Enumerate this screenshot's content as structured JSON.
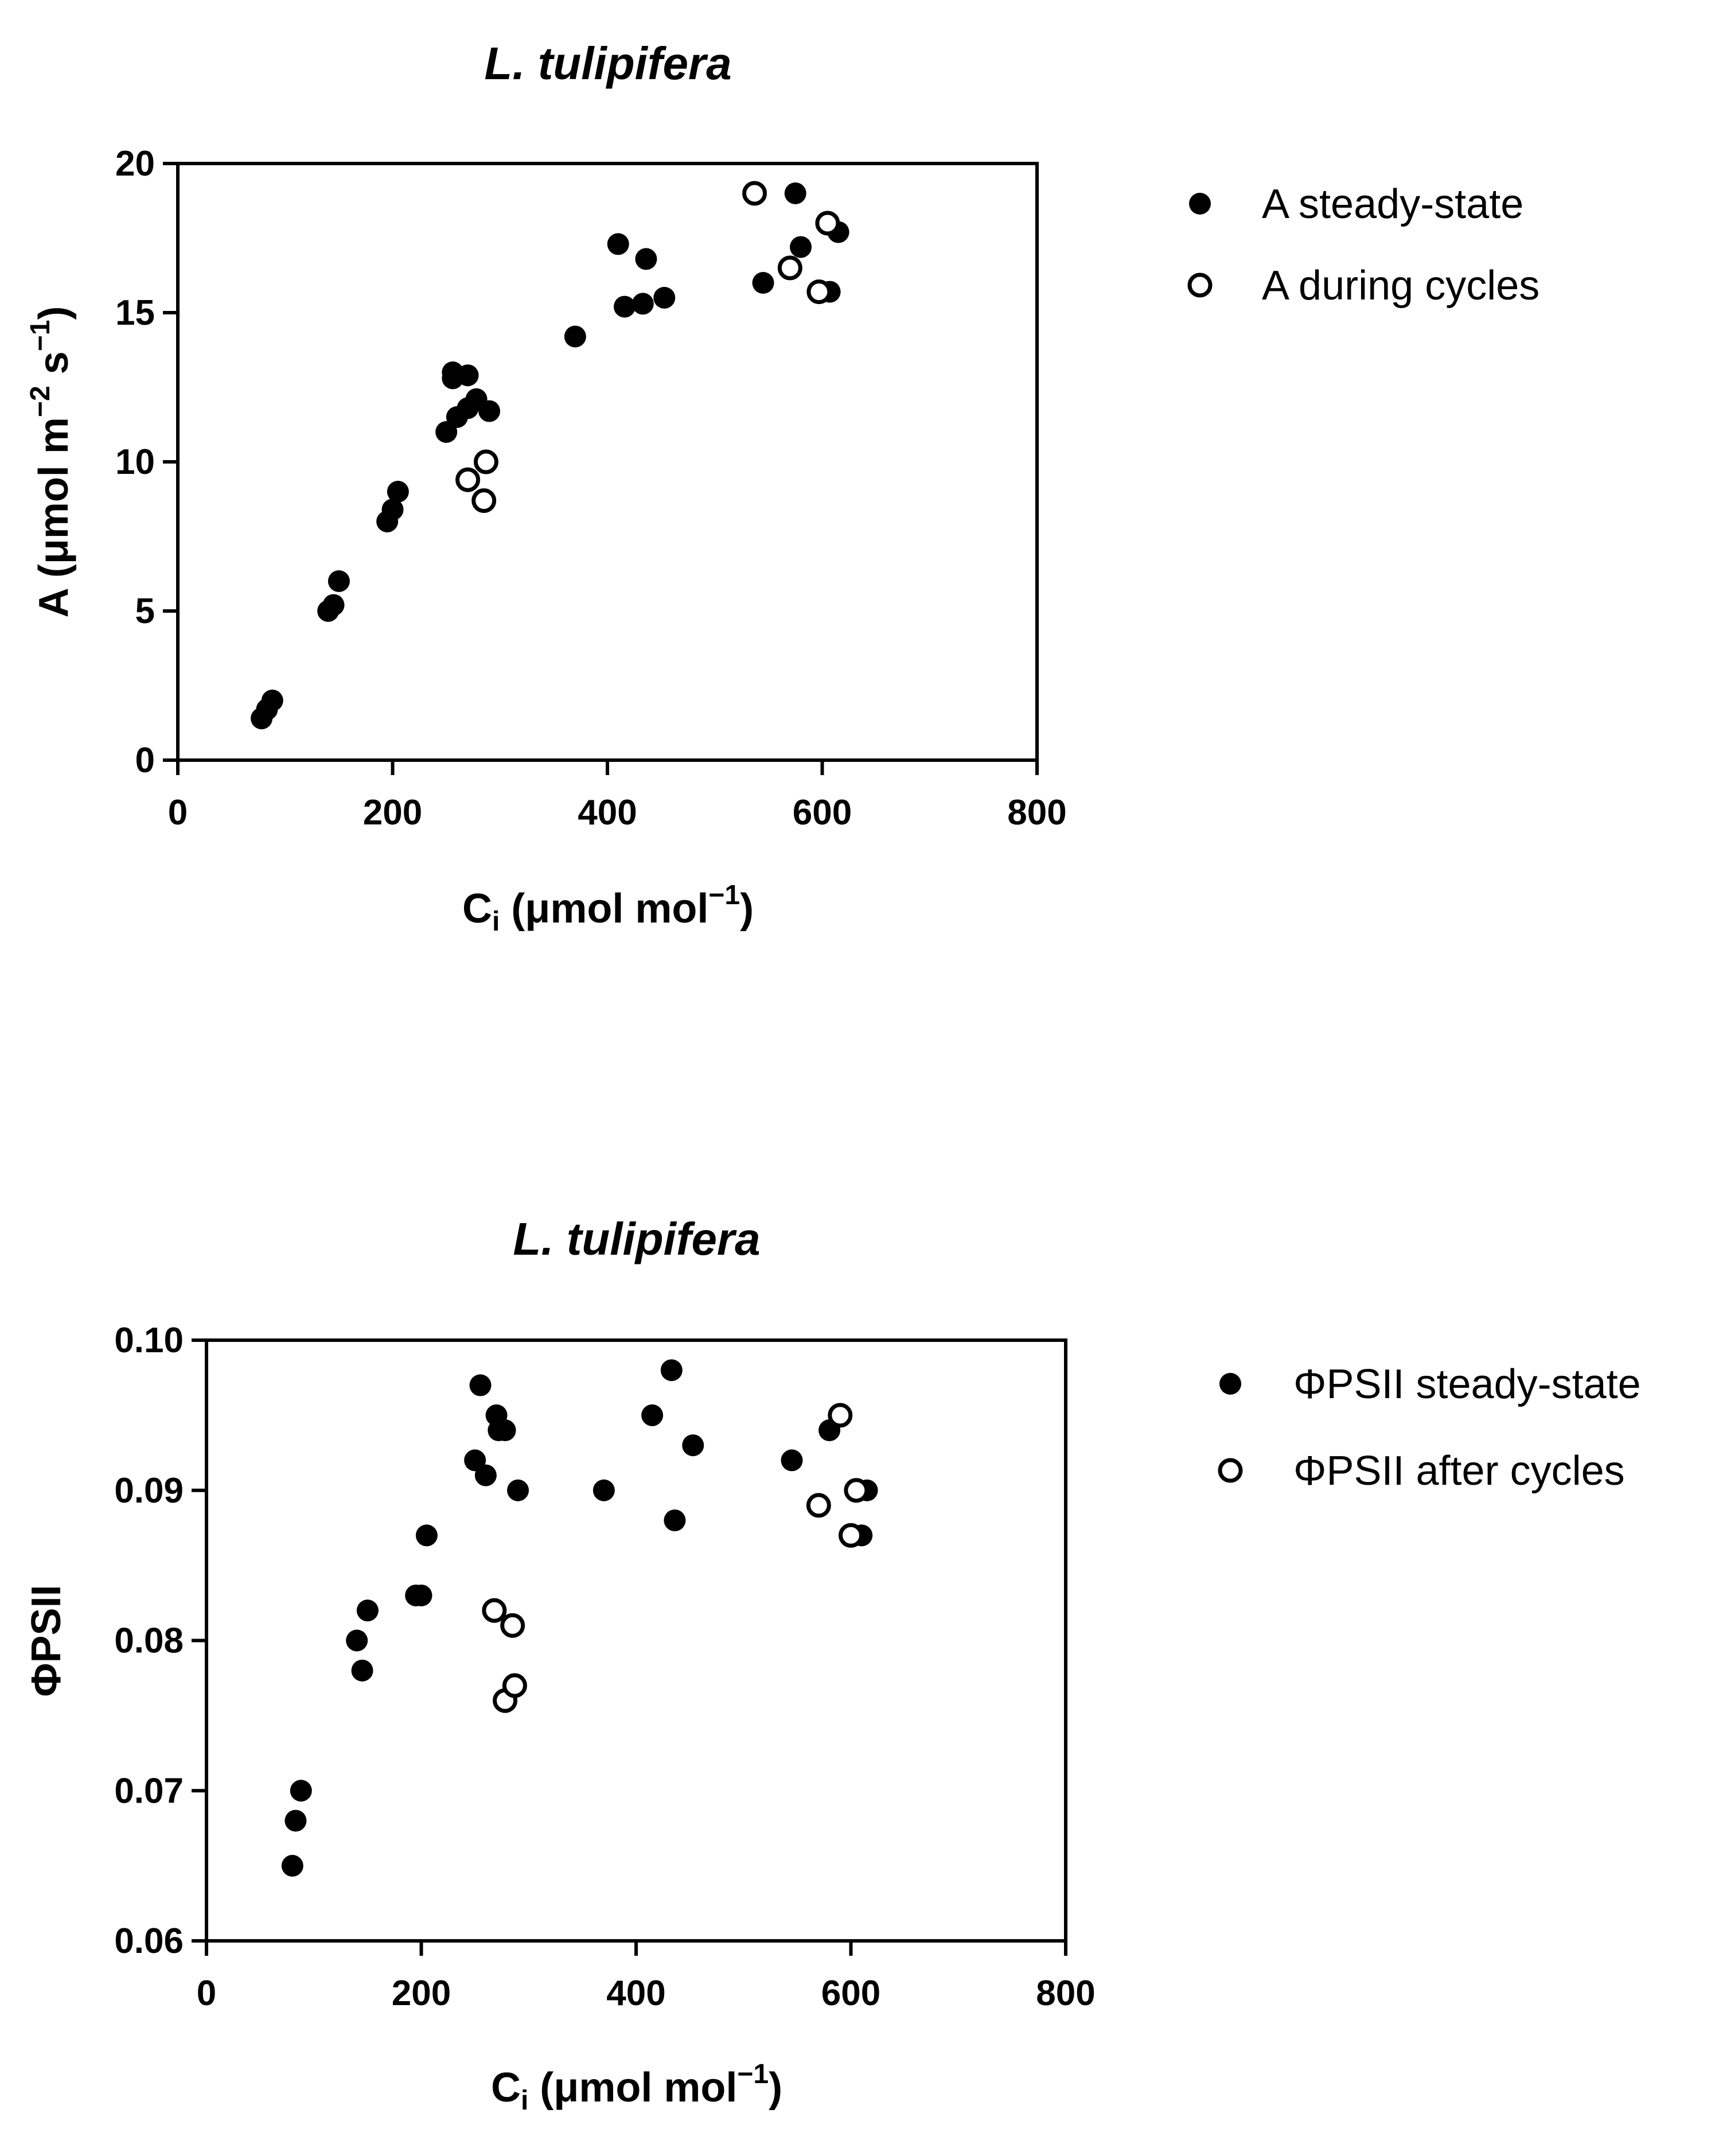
{
  "chart_data": [
    {
      "type": "scatter",
      "title": "L. tulipifera",
      "xlabel": {
        "main": "C",
        "sub": "i",
        "unit": " (μmol mol",
        "exp": "−1",
        "close": ")"
      },
      "ylabel": {
        "main": "A (μmol m",
        "exp1": "−2",
        "mid": " s",
        "exp2": "−1",
        "close": ")"
      },
      "xlim": [
        0,
        800
      ],
      "ylim": [
        0,
        20
      ],
      "xticks": [
        "0",
        "200",
        "400",
        "600",
        "800"
      ],
      "yticks": [
        "0",
        "5",
        "10",
        "15",
        "20"
      ],
      "series": [
        {
          "name": "A steady-state",
          "marker": "filled",
          "points": [
            [
              78,
              1.4
            ],
            [
              83,
              1.7
            ],
            [
              88,
              2.0
            ],
            [
              140,
              5.0
            ],
            [
              145,
              5.2
            ],
            [
              150,
              6.0
            ],
            [
              195,
              8.0
            ],
            [
              200,
              8.4
            ],
            [
              205,
              9.0
            ],
            [
              250,
              11.0
            ],
            [
              256,
              13.0
            ],
            [
              256,
              12.8
            ],
            [
              260,
              11.5
            ],
            [
              270,
              12.9
            ],
            [
              270,
              11.8
            ],
            [
              278,
              12.1
            ],
            [
              290,
              11.7
            ],
            [
              370,
              14.2
            ],
            [
              410,
              17.3
            ],
            [
              416,
              15.2
            ],
            [
              433,
              15.3
            ],
            [
              436,
              16.8
            ],
            [
              453,
              15.5
            ],
            [
              545,
              16.0
            ],
            [
              575,
              19.0
            ],
            [
              580,
              17.2
            ],
            [
              607,
              15.7
            ],
            [
              615,
              17.7
            ]
          ]
        },
        {
          "name": "A during cycles",
          "marker": "open",
          "points": [
            [
              270,
              9.4
            ],
            [
              285,
              8.7
            ],
            [
              287,
              10.0
            ],
            [
              537,
              19.0
            ],
            [
              570,
              16.5
            ],
            [
              597,
              15.7
            ],
            [
              605,
              18.0
            ]
          ]
        }
      ]
    },
    {
      "type": "scatter",
      "title": "L. tulipifera",
      "xlabel": {
        "main": "C",
        "sub": "i",
        "unit": " (μmol mol",
        "exp": "−1",
        "close": ")"
      },
      "ylabel": {
        "main": "ΦPSII"
      },
      "xlim": [
        0,
        800
      ],
      "ylim": [
        0.06,
        0.1
      ],
      "xticks": [
        "0",
        "200",
        "400",
        "600",
        "800"
      ],
      "yticks": [
        "0.06",
        "0.07",
        "0.08",
        "0.09",
        "0.10"
      ],
      "series": [
        {
          "name": "ΦPSII steady-state",
          "marker": "filled",
          "points": [
            [
              80,
              0.065
            ],
            [
              83,
              0.068
            ],
            [
              88,
              0.07
            ],
            [
              140,
              0.08
            ],
            [
              145,
              0.078
            ],
            [
              150,
              0.082
            ],
            [
              195,
              0.083
            ],
            [
              200,
              0.083
            ],
            [
              205,
              0.087
            ],
            [
              250,
              0.092
            ],
            [
              255,
              0.097
            ],
            [
              260,
              0.091
            ],
            [
              270,
              0.095
            ],
            [
              272,
              0.094
            ],
            [
              278,
              0.094
            ],
            [
              290,
              0.09
            ],
            [
              370,
              0.09
            ],
            [
              415,
              0.095
            ],
            [
              433,
              0.098
            ],
            [
              436,
              0.088
            ],
            [
              453,
              0.093
            ],
            [
              545,
              0.092
            ],
            [
              580,
              0.094
            ],
            [
              610,
              0.087
            ],
            [
              615,
              0.09
            ]
          ]
        },
        {
          "name": "ΦPSII after cycles",
          "marker": "open",
          "points": [
            [
              268,
              0.082
            ],
            [
              278,
              0.076
            ],
            [
              285,
              0.081
            ],
            [
              287,
              0.077
            ],
            [
              570,
              0.089
            ],
            [
              590,
              0.095
            ],
            [
              600,
              0.087
            ],
            [
              605,
              0.09
            ]
          ]
        }
      ]
    }
  ]
}
